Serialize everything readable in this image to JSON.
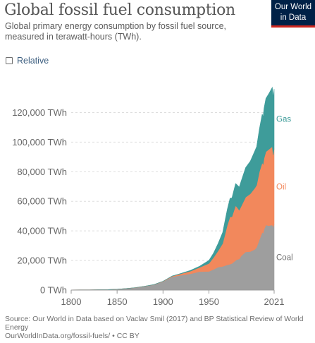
{
  "header": {
    "title": "Global fossil fuel consumption",
    "subtitle": "Global primary energy consumption by fossil fuel source, measured in terawatt-hours (TWh)."
  },
  "logo": {
    "line1": "Our World",
    "line2": "in Data",
    "bg_color": "#002147",
    "accent_color": "#ce261e"
  },
  "controls": {
    "relative_label": "Relative",
    "relative_checked": false
  },
  "footer": {
    "source": "Source: Our World in Data based on Vaclav Smil (2017) and BP Statistical Review of World Energy",
    "url": "OurWorldInData.org/fossil-fuels/",
    "license": "• CC BY"
  },
  "chart_data": {
    "type": "area",
    "stacked": true,
    "x_ticks": [
      "1800",
      "1850",
      "1900",
      "1950",
      "2021"
    ],
    "y_ticks": [
      "0 TWh",
      "20,000 TWh",
      "40,000 TWh",
      "60,000 TWh",
      "80,000 TWh",
      "100,000 TWh",
      "120,000 TWh"
    ],
    "xlim": [
      1800,
      2021
    ],
    "ylim": [
      0,
      135000
    ],
    "grid": "horizontal-dashed",
    "x": [
      1800,
      1810,
      1820,
      1830,
      1840,
      1850,
      1860,
      1870,
      1880,
      1890,
      1900,
      1910,
      1920,
      1930,
      1940,
      1950,
      1955,
      1960,
      1965,
      1970,
      1973,
      1975,
      1979,
      1980,
      1983,
      1985,
      1990,
      1995,
      2000,
      2002,
      2005,
      2008,
      2009,
      2010,
      2012,
      2015,
      2019,
      2020,
      2021
    ],
    "series": [
      {
        "name": "Coal",
        "color": "#9e9e9e",
        "values": [
          97,
          128,
          153,
          264,
          356,
          569,
          1061,
          1642,
          2542,
          3600,
          5728,
          9000,
          10000,
          11000,
          12500,
          12600,
          14000,
          15500,
          16000,
          17000,
          17500,
          18000,
          20000,
          20500,
          21000,
          23000,
          25800,
          26000,
          27500,
          29000,
          34000,
          39000,
          38500,
          41000,
          44000,
          43500,
          44000,
          42800,
          44500
        ]
      },
      {
        "name": "Oil",
        "color": "#f2885c",
        "values": [
          0,
          0,
          0,
          0,
          0,
          0,
          0,
          6,
          33,
          88,
          181,
          380,
          1100,
          1800,
          2800,
          5400,
          8000,
          11000,
          15500,
          26700,
          32000,
          31500,
          37000,
          36000,
          33000,
          33500,
          37000,
          39000,
          41500,
          42000,
          46000,
          47000,
          46500,
          48000,
          49500,
          51500,
          53000,
          48500,
          51000
        ]
      },
      {
        "name": "Gas",
        "color": "#3e9c9a",
        "values": [
          0,
          0,
          0,
          0,
          0,
          0,
          0,
          0,
          6,
          36,
          64,
          140,
          230,
          580,
          870,
          2100,
          3000,
          5000,
          7500,
          10800,
          12500,
          12800,
          15000,
          15000,
          15600,
          17000,
          20000,
          22000,
          25000,
          26000,
          29000,
          33000,
          32000,
          34000,
          36000,
          37500,
          40000,
          39000,
          40400
        ]
      }
    ]
  }
}
